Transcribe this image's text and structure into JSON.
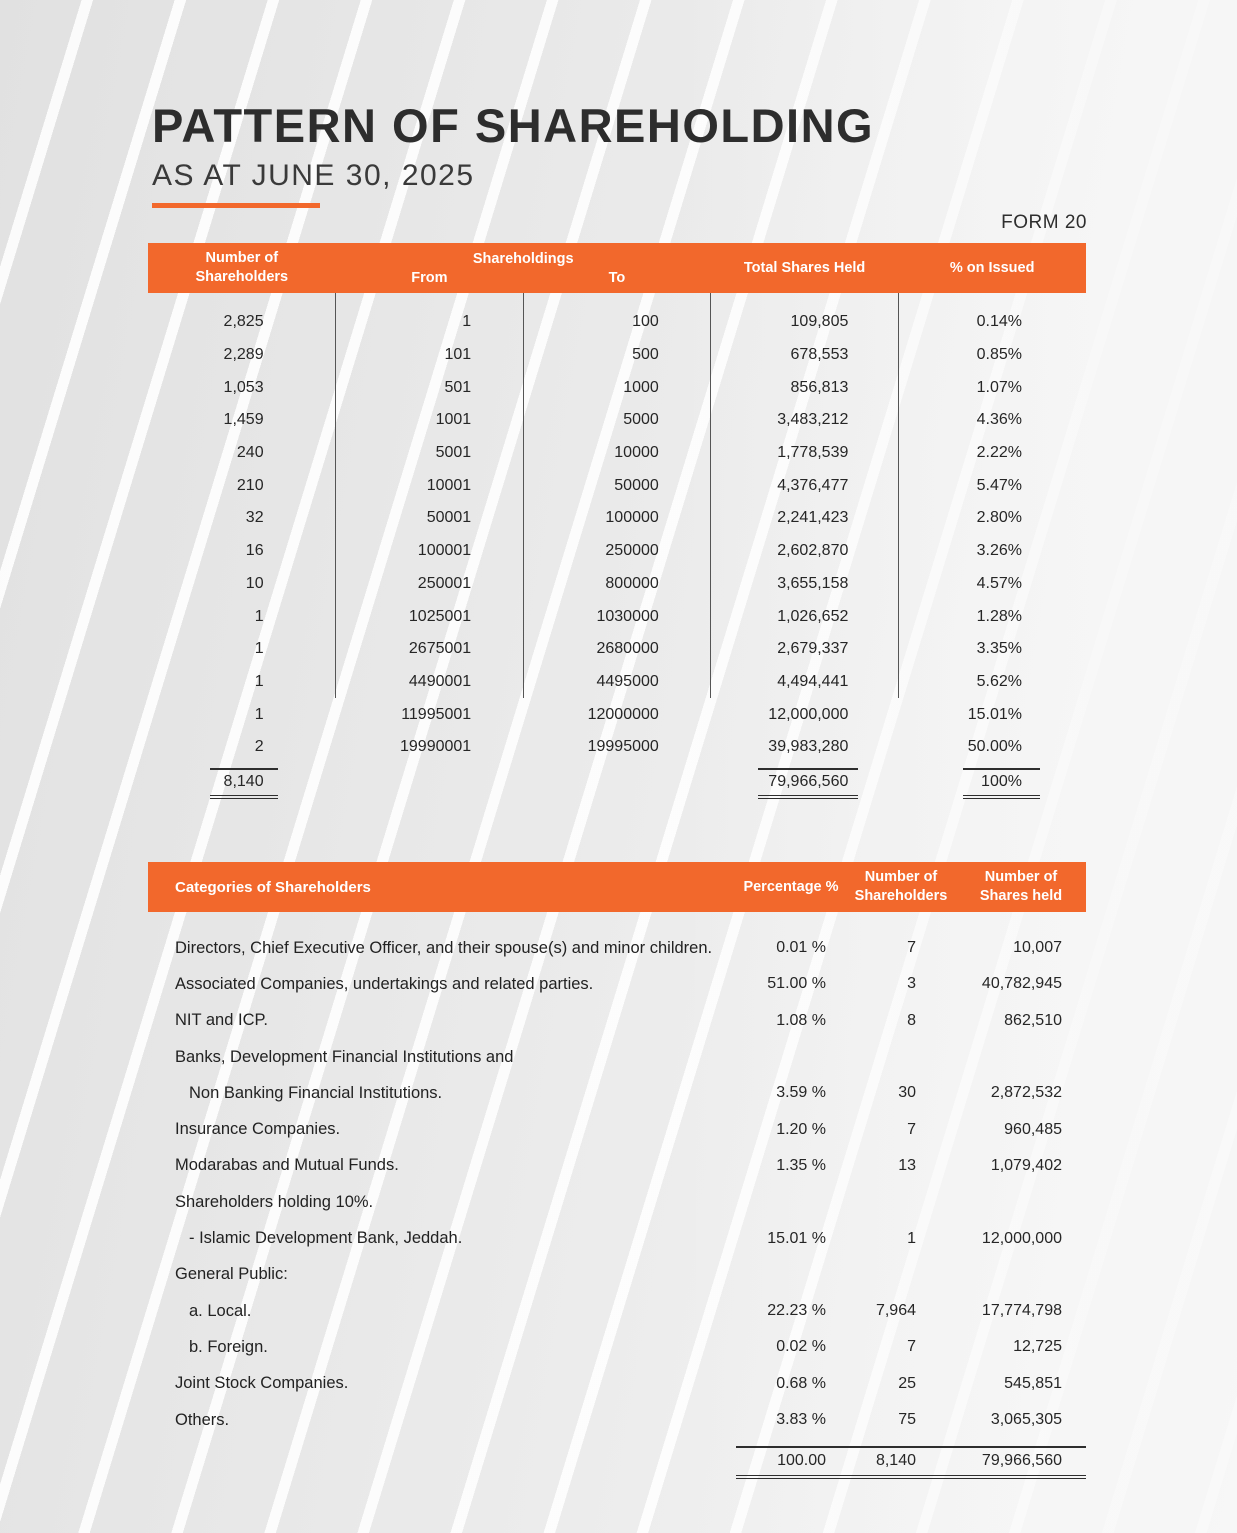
{
  "page": {
    "title": "PATTERN OF SHAREHOLDING",
    "subtitle": "AS AT JUNE 30, 2025",
    "form_label": "FORM 20"
  },
  "colors": {
    "accent_orange": "#F2682C",
    "title_dark": "#2D2D2D"
  },
  "table1": {
    "headers": {
      "col1": "Number of Shareholders",
      "group": "Shareholdings",
      "from": "From",
      "to": "To",
      "col4": "Total Shares Held",
      "col5": "% on Issued"
    },
    "rows": [
      {
        "shareholders": "2,825",
        "from": "1",
        "to": "100",
        "total": "109,805",
        "pct": "0.14%"
      },
      {
        "shareholders": "2,289",
        "from": "101",
        "to": "500",
        "total": "678,553",
        "pct": "0.85%"
      },
      {
        "shareholders": "1,053",
        "from": "501",
        "to": "1000",
        "total": "856,813",
        "pct": "1.07%"
      },
      {
        "shareholders": "1,459",
        "from": "1001",
        "to": "5000",
        "total": "3,483,212",
        "pct": "4.36%"
      },
      {
        "shareholders": "240",
        "from": "5001",
        "to": "10000",
        "total": "1,778,539",
        "pct": "2.22%"
      },
      {
        "shareholders": "210",
        "from": "10001",
        "to": "50000",
        "total": "4,376,477",
        "pct": "5.47%"
      },
      {
        "shareholders": "32",
        "from": "50001",
        "to": "100000",
        "total": "2,241,423",
        "pct": "2.80%"
      },
      {
        "shareholders": "16",
        "from": "100001",
        "to": "250000",
        "total": "2,602,870",
        "pct": "3.26%"
      },
      {
        "shareholders": "10",
        "from": "250001",
        "to": "800000",
        "total": "3,655,158",
        "pct": "4.57%"
      },
      {
        "shareholders": "1",
        "from": "1025001",
        "to": "1030000",
        "total": "1,026,652",
        "pct": "1.28%"
      },
      {
        "shareholders": "1",
        "from": "2675001",
        "to": "2680000",
        "total": "2,679,337",
        "pct": "3.35%"
      },
      {
        "shareholders": "1",
        "from": "4490001",
        "to": "4495000",
        "total": "4,494,441",
        "pct": "5.62%"
      },
      {
        "shareholders": "1",
        "from": "11995001",
        "to": "12000000",
        "total": "12,000,000",
        "pct": "15.01%"
      },
      {
        "shareholders": "2",
        "from": "19990001",
        "to": "19995000",
        "total": "39,983,280",
        "pct": "50.00%"
      }
    ],
    "totals": {
      "shareholders": "8,140",
      "total": "79,966,560",
      "pct": "100%"
    }
  },
  "table2": {
    "headers": {
      "category": "Categories of Shareholders",
      "pct": "Percentage %",
      "count": "Number of Shareholders",
      "shares": "Number of Shares held"
    },
    "rows": [
      {
        "category": "Directors, Chief Executive Officer, and their spouse(s) and minor children.",
        "pct": "0.01 %",
        "count": "7",
        "shares": "10,007",
        "indent": false
      },
      {
        "category": "Associated Companies, undertakings and related parties.",
        "pct": "51.00 %",
        "count": "3",
        "shares": "40,782,945",
        "indent": false
      },
      {
        "category": "NIT and ICP.",
        "pct": "1.08 %",
        "count": "8",
        "shares": "862,510",
        "indent": false
      },
      {
        "category": "Banks, Development Financial Institutions and",
        "pct": "",
        "count": "",
        "shares": "",
        "indent": false
      },
      {
        "category": "Non Banking Financial Institutions.",
        "pct": "3.59 %",
        "count": "30",
        "shares": "2,872,532",
        "indent": true
      },
      {
        "category": "Insurance Companies.",
        "pct": "1.20 %",
        "count": "7",
        "shares": "960,485",
        "indent": false
      },
      {
        "category": "Modarabas and Mutual Funds.",
        "pct": "1.35 %",
        "count": "13",
        "shares": "1,079,402",
        "indent": false
      },
      {
        "category": "Shareholders holding 10%.",
        "pct": "",
        "count": "",
        "shares": "",
        "indent": false
      },
      {
        "category": "- Islamic Development Bank, Jeddah.",
        "pct": "15.01 %",
        "count": "1",
        "shares": "12,000,000",
        "indent": true
      },
      {
        "category": "General Public:",
        "pct": "",
        "count": "",
        "shares": "",
        "indent": false
      },
      {
        "category": "a. Local.",
        "pct": "22.23 %",
        "count": "7,964",
        "shares": "17,774,798",
        "indent": true
      },
      {
        "category": "b. Foreign.",
        "pct": "0.02 %",
        "count": "7",
        "shares": "12,725",
        "indent": true
      },
      {
        "category": "Joint Stock Companies.",
        "pct": "0.68 %",
        "count": "25",
        "shares": "545,851",
        "indent": false
      },
      {
        "category": "Others.",
        "pct": "3.83 %",
        "count": "75",
        "shares": "3,065,305",
        "indent": false
      }
    ],
    "totals": {
      "pct": "100.00",
      "count": "8,140",
      "shares": "79,966,560"
    }
  }
}
